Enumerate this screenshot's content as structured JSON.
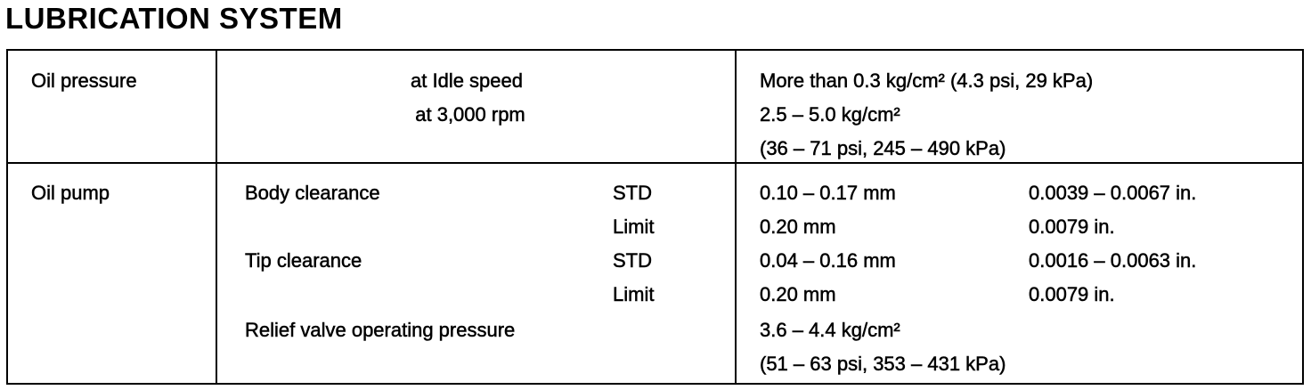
{
  "title": "LUBRICATION SYSTEM",
  "table": {
    "rows": [
      {
        "item": "Oil pressure",
        "conditions": [
          "at Idle speed",
          "at 3,000 rpm"
        ],
        "specs": [
          "More than 0.3 kg/cm² (4.3 psi, 29 kPa)",
          "2.5 – 5.0 kg/cm²",
          "(36 – 71 psi, 245 – 490 kPa)"
        ]
      },
      {
        "item": "Oil pump",
        "parts": [
          {
            "name": "Body clearance",
            "grades": [
              {
                "grade": "STD",
                "metric": "0.10 – 0.17 mm",
                "imperial": "0.0039 – 0.0067 in."
              },
              {
                "grade": "Limit",
                "metric": "0.20 mm",
                "imperial": "0.0079 in."
              }
            ]
          },
          {
            "name": "Tip clearance",
            "grades": [
              {
                "grade": "STD",
                "metric": "0.04 – 0.16 mm",
                "imperial": "0.0016 – 0.0063 in."
              },
              {
                "grade": "Limit",
                "metric": "0.20 mm",
                "imperial": "0.0079 in."
              }
            ]
          },
          {
            "name": "Relief valve operating pressure",
            "specs": [
              "3.6 – 4.4 kg/cm²",
              "(51 – 63 psi, 353 – 431 kPa)"
            ]
          }
        ]
      }
    ]
  }
}
